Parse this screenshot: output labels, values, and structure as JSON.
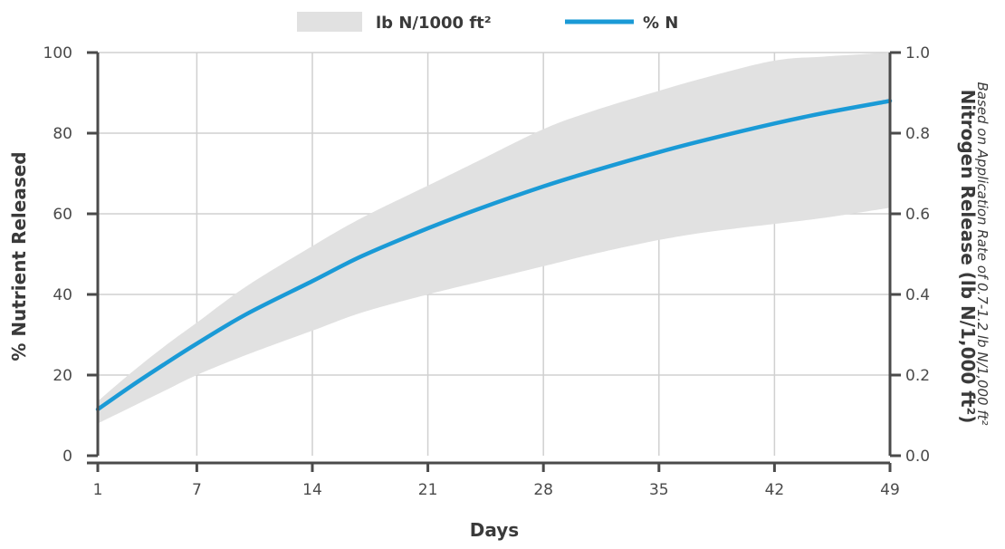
{
  "chart_data": {
    "type": "line",
    "legend": {
      "placement": "top-center",
      "band_label": "lb N/1000 ft²",
      "line_label": "% N"
    },
    "x": [
      1,
      3,
      5,
      7,
      10,
      14,
      17,
      21,
      24,
      28,
      31,
      35,
      38,
      42,
      45,
      49
    ],
    "xlabel": "Days",
    "xlim": [
      1,
      49
    ],
    "xticks": [
      "1",
      "7",
      "14",
      "21",
      "28",
      "35",
      "42",
      "49"
    ],
    "xtick_values": [
      1,
      7,
      14,
      21,
      28,
      35,
      42,
      49
    ],
    "ylabel": "% Nutrient Released",
    "ylim": [
      0,
      100
    ],
    "yticks": [
      "0",
      "20",
      "40",
      "60",
      "80",
      "100"
    ],
    "yticks_values": [
      0,
      20,
      40,
      60,
      80,
      100
    ],
    "y2label": "Nitrogen Release (lb N/1,000 ft²)",
    "y2sublabel": "Based on Application Rate of 0.7-1.2 lb N/1,000 ft²",
    "y2lim": [
      0,
      1.0
    ],
    "y2ticks": [
      "0.0",
      "0.2",
      "0.4",
      "0.6",
      "0.8",
      "1.0"
    ],
    "grid": true,
    "series": [
      {
        "name": "% N",
        "kind": "line",
        "color": "#1a9ad6",
        "axis": "left",
        "values": [
          11.5,
          17.2,
          22.6,
          27.8,
          35.1,
          43.3,
          49.5,
          56.4,
          61.1,
          66.8,
          70.6,
          75.3,
          78.5,
          82.4,
          85.0,
          88.0
        ]
      },
      {
        "name": "lb N/1000 ft²",
        "kind": "band",
        "color": "#e1e1e1",
        "axis": "right",
        "upper": [
          0.135,
          0.205,
          0.27,
          0.33,
          0.42,
          0.52,
          0.59,
          0.67,
          0.73,
          0.81,
          0.855,
          0.905,
          0.94,
          0.98,
          0.99,
          1.0
        ],
        "lower": [
          0.08,
          0.12,
          0.16,
          0.2,
          0.25,
          0.31,
          0.355,
          0.4,
          0.43,
          0.47,
          0.5,
          0.535,
          0.555,
          0.575,
          0.59,
          0.615
        ]
      }
    ]
  },
  "colors": {
    "axis": "#4a4a4a",
    "grid": "#d0d0d0",
    "band": "#e1e1e1",
    "line": "#1a9ad6"
  }
}
